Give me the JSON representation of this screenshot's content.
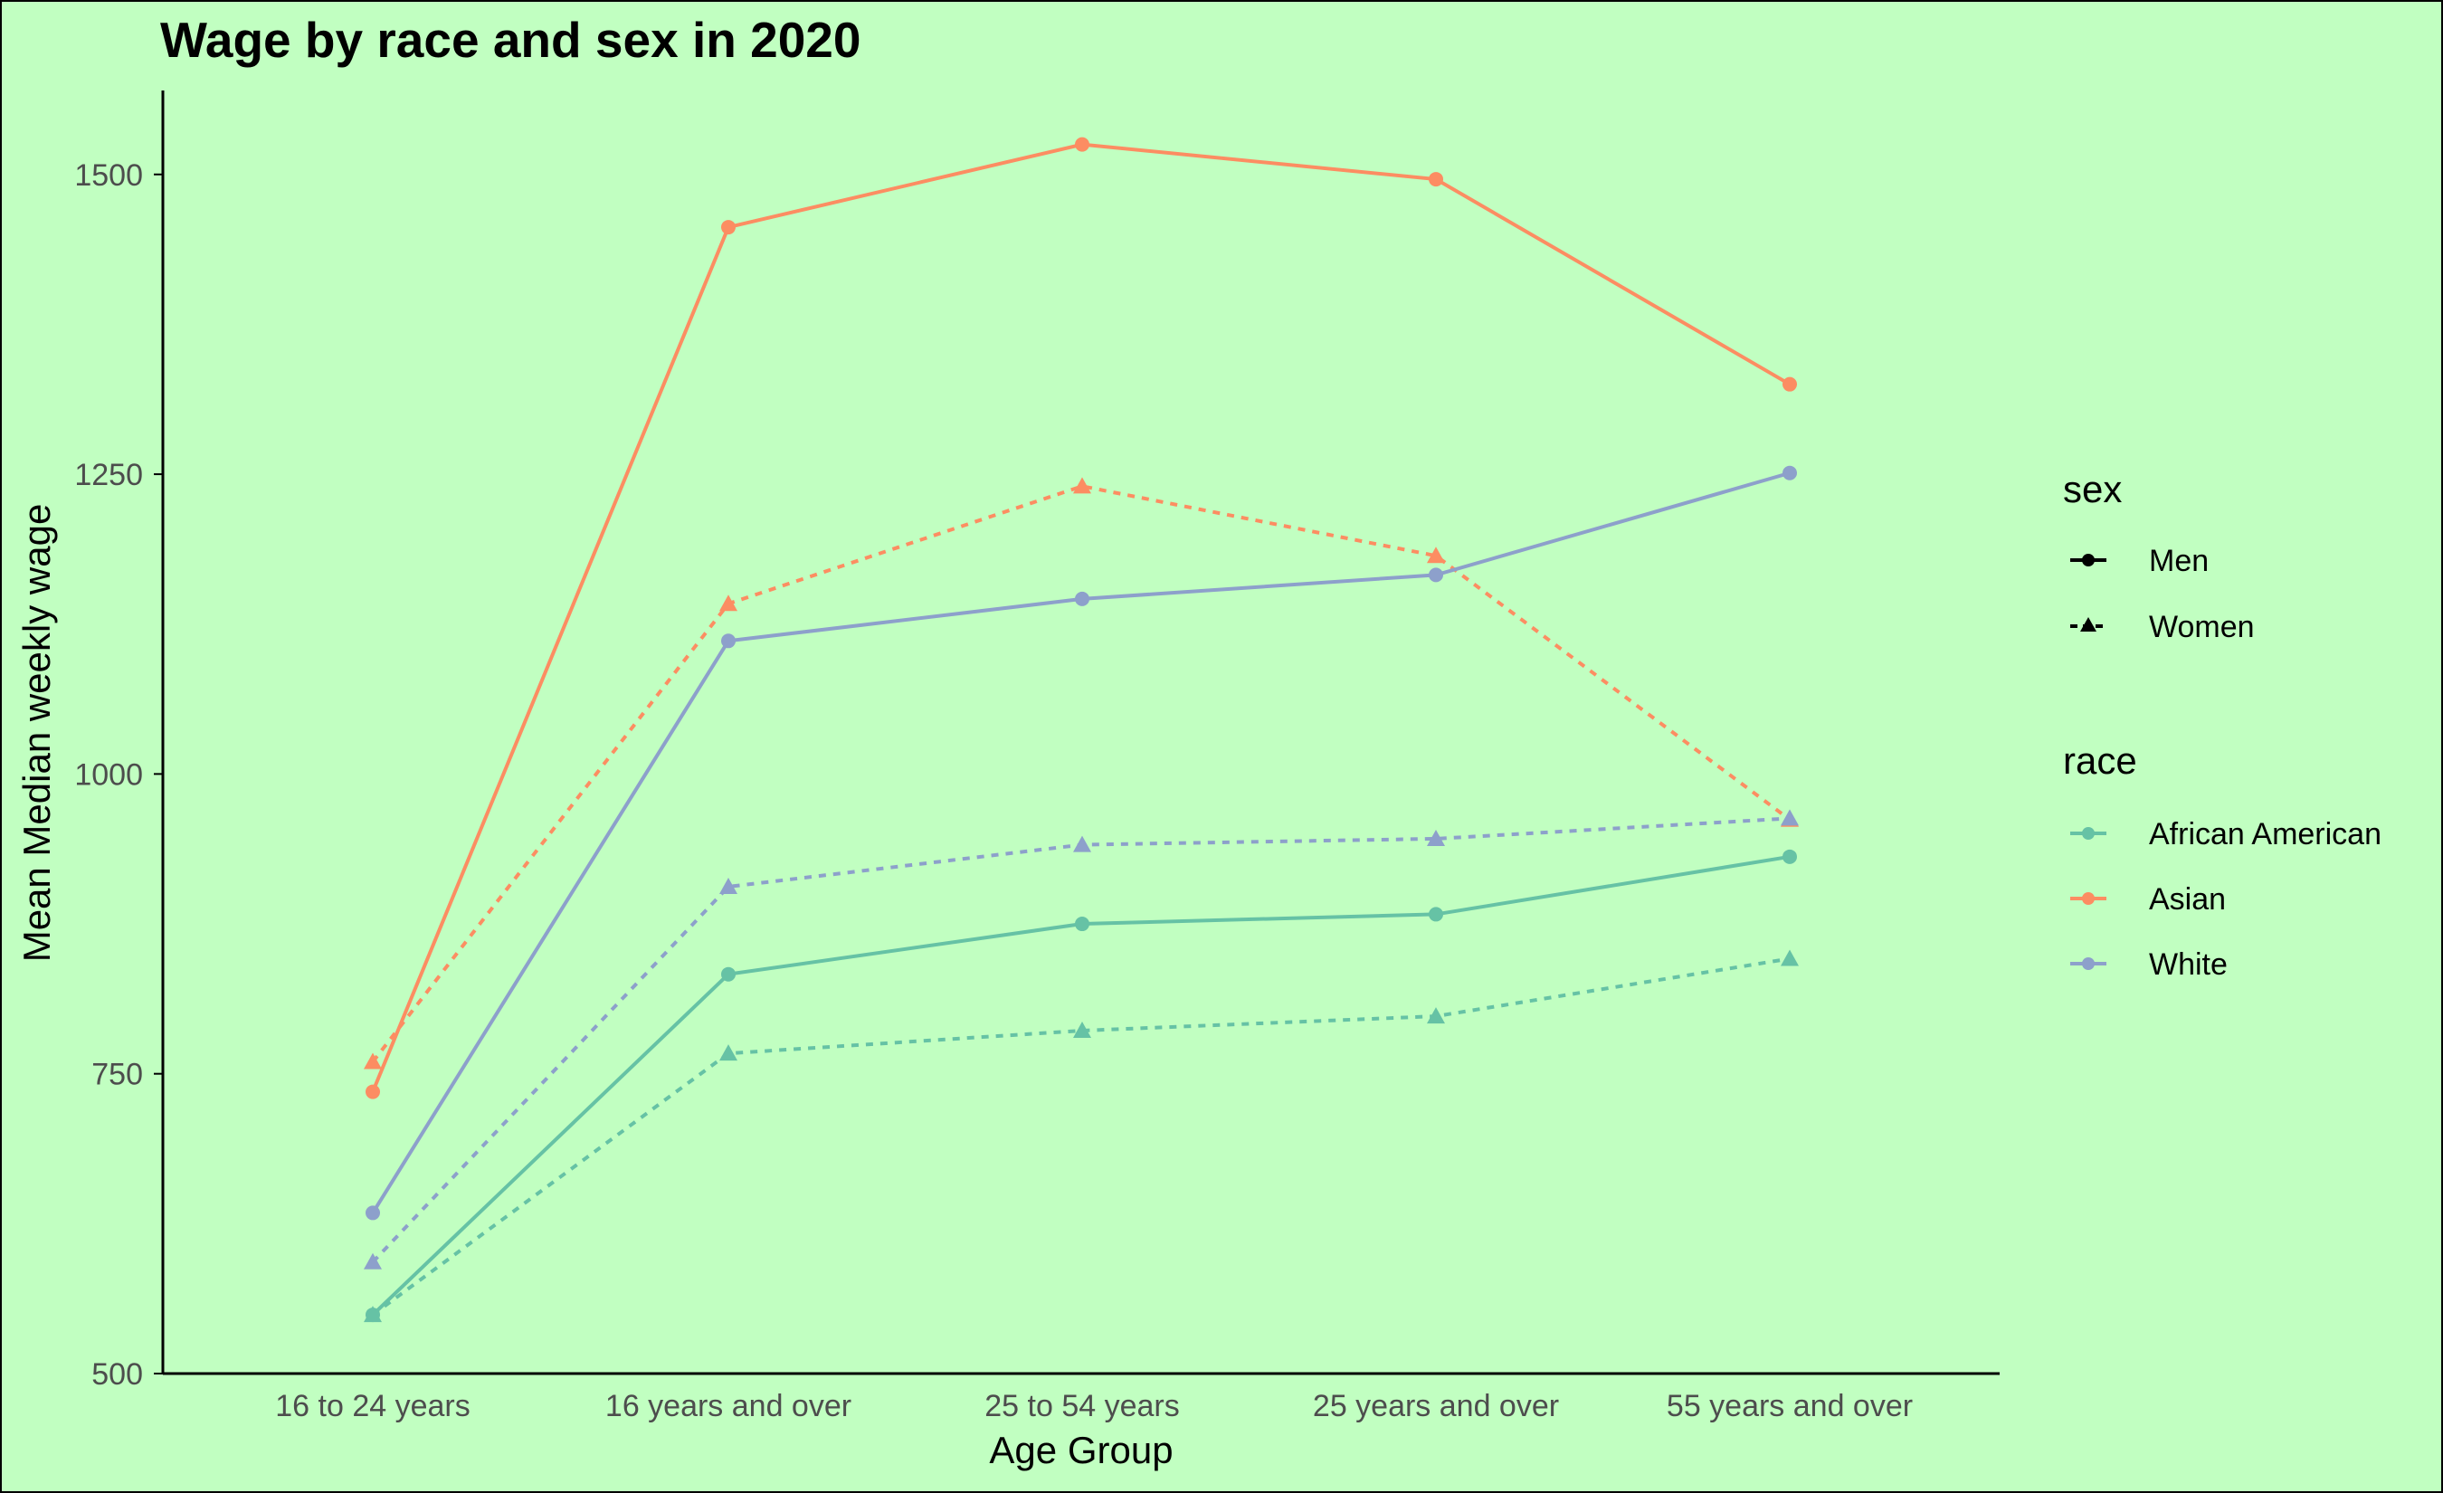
{
  "chart_data": {
    "type": "line",
    "title": "Wage by race and sex in 2020",
    "xlabel": "Age Group",
    "ylabel": "Mean Median weekly wage",
    "categories": [
      "16 to 24 years",
      "16 years and over",
      "25 to 54 years",
      "25 years and over",
      "55 years and over"
    ],
    "ylim": [
      500,
      1570
    ],
    "yticks": [
      500,
      750,
      1000,
      1250,
      1500
    ],
    "grid": false,
    "legend_position": "right",
    "legends": {
      "sex": {
        "title": "sex",
        "entries": [
          "Men",
          "Women"
        ]
      },
      "race": {
        "title": "race",
        "entries": [
          "African American",
          "Asian",
          "White"
        ]
      }
    },
    "colors": {
      "African American": "#66c2a5",
      "Asian": "#fc8d62",
      "White": "#8da0cb",
      "background": "#c1ffc1"
    },
    "series": [
      {
        "race": "Asian",
        "sex": "Men",
        "values": [
          735,
          1456,
          1525,
          1496,
          1325
        ]
      },
      {
        "race": "Asian",
        "sex": "Women",
        "values": [
          760,
          1142,
          1240,
          1182,
          962
        ]
      },
      {
        "race": "White",
        "sex": "Men",
        "values": [
          634,
          1111,
          1146,
          1166,
          1251
        ]
      },
      {
        "race": "White",
        "sex": "Women",
        "values": [
          593,
          906,
          941,
          946,
          963
        ]
      },
      {
        "race": "African American",
        "sex": "Men",
        "values": [
          549,
          833,
          875,
          883,
          931
        ]
      },
      {
        "race": "African American",
        "sex": "Women",
        "values": [
          549,
          767,
          786,
          798,
          846
        ]
      }
    ]
  }
}
